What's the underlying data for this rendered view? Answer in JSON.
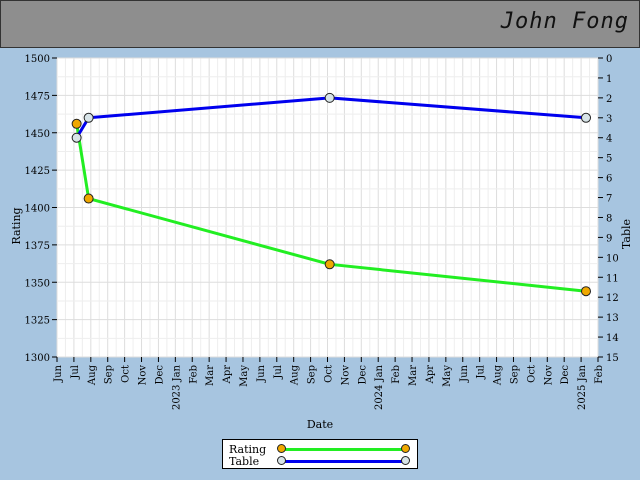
{
  "header": {
    "player_name": "John Fong"
  },
  "chart_data": {
    "type": "line",
    "xlabel": "Date",
    "ylabel": "Rating",
    "y2label": "Table",
    "ylim": [
      1300,
      1500
    ],
    "y_ticks": [
      1300,
      1325,
      1350,
      1375,
      1400,
      1425,
      1450,
      1475,
      1500
    ],
    "y2lim": [
      0,
      15
    ],
    "y2_inverted": true,
    "y2_ticks": [
      0,
      1,
      2,
      3,
      4,
      5,
      6,
      7,
      8,
      9,
      10,
      11,
      12,
      13,
      14,
      15
    ],
    "x_ticks": [
      "Jun",
      "Jul",
      "Aug",
      "Sep",
      "Oct",
      "Nov",
      "Dec",
      "2023 Jan",
      "Feb",
      "Mar",
      "Apr",
      "May",
      "Jun",
      "Jul",
      "Aug",
      "Sep",
      "Oct",
      "Nov",
      "Dec",
      "2024 Jan",
      "Feb",
      "Mar",
      "Apr",
      "May",
      "Jun",
      "Jul",
      "Aug",
      "Sep",
      "Oct",
      "Nov",
      "Dec",
      "2025 Jan",
      "Feb"
    ],
    "grid": true,
    "legend_position": "bottom-center",
    "series": [
      {
        "name": "Rating",
        "axis": "left",
        "color": "#22ee22",
        "marker_color": "#f0a800",
        "points": [
          {
            "x": "2022-07-06",
            "y": 1456
          },
          {
            "x": "2022-07-28",
            "y": 1406
          },
          {
            "x": "2023-10-05",
            "y": 1362
          },
          {
            "x": "2025-01-10",
            "y": 1344
          }
        ]
      },
      {
        "name": "Table",
        "axis": "right",
        "color": "#0000ee",
        "marker_color": "#d8e4e8",
        "points": [
          {
            "x": "2022-07-06",
            "y": 4
          },
          {
            "x": "2022-07-28",
            "y": 3
          },
          {
            "x": "2023-10-05",
            "y": 2
          },
          {
            "x": "2025-01-10",
            "y": 3
          }
        ]
      }
    ]
  }
}
